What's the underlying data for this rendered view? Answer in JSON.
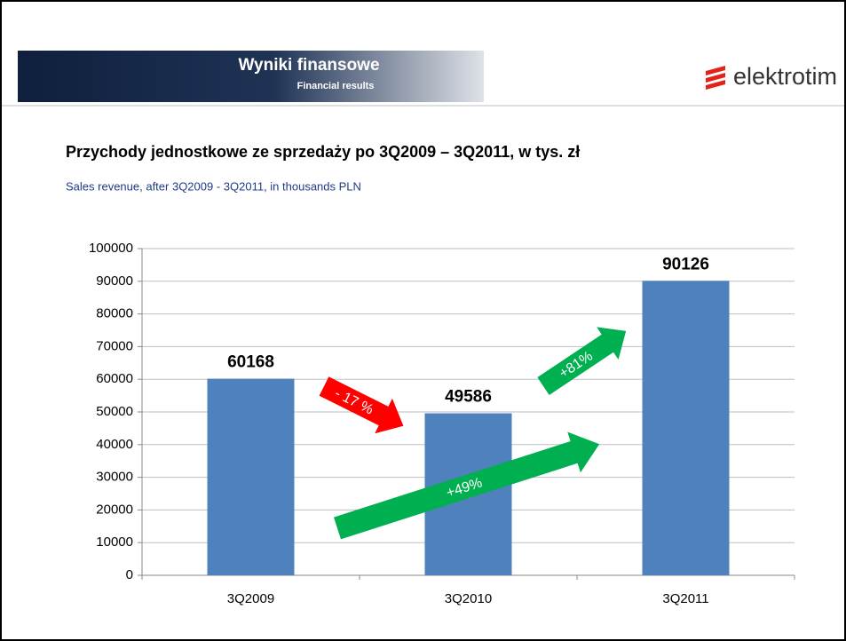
{
  "header": {
    "title": "Wyniki finansowe",
    "subtitle": "Financial results",
    "logo": "elektrotim"
  },
  "chart_data": {
    "type": "bar",
    "title": "Przychody jednostkowe ze sprzedaży po 3Q2009 – 3Q2011, w tys. zł",
    "subtitle": "Sales revenue, after 3Q2009 - 3Q2011, in thousands PLN",
    "categories": [
      "3Q2009",
      "3Q2010",
      "3Q2011"
    ],
    "values": [
      60168,
      49586,
      90126
    ],
    "color": "#4f81bd",
    "ylim": [
      0,
      100000
    ],
    "yticks": [
      0,
      10000,
      20000,
      30000,
      40000,
      50000,
      60000,
      70000,
      80000,
      90000,
      100000
    ],
    "grid": true,
    "annotations": [
      "- 17 %",
      "+81%",
      "+49%"
    ]
  }
}
